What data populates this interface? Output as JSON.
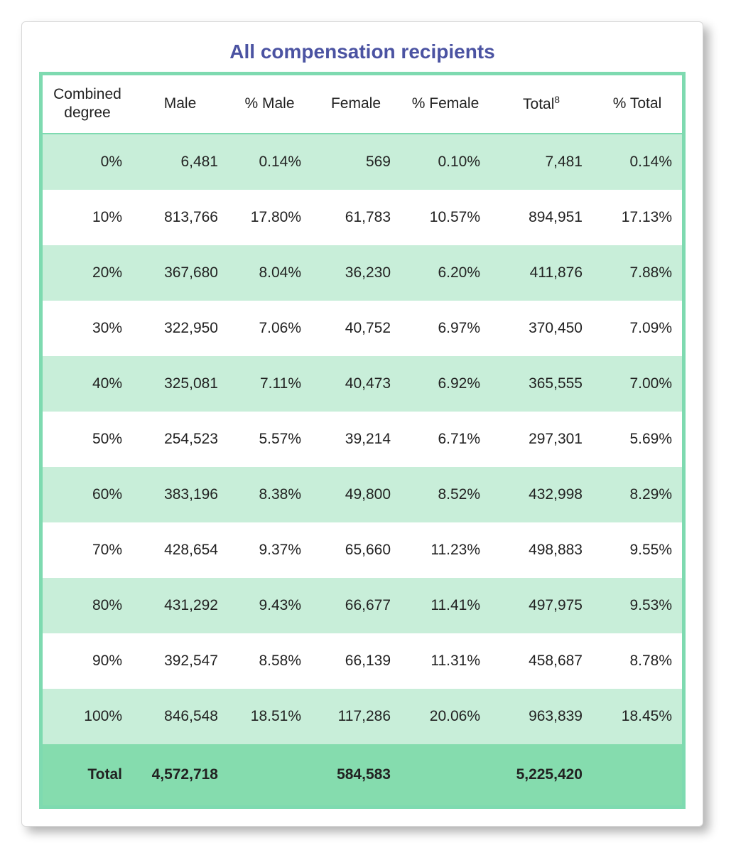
{
  "title": "All compensation recipients",
  "colors": {
    "title": "#4b53a2",
    "table_border": "#7edab0",
    "row_odd_bg": "#c8eed9",
    "row_even_bg": "#ffffff",
    "total_row_bg": "#85dcae",
    "text": "#222222",
    "card_bg": "#ffffff",
    "card_border": "#d8d8d8"
  },
  "typography": {
    "title_fontsize_pt": 21,
    "header_fontsize_pt": 16,
    "cell_fontsize_pt": 16,
    "font_family": "Arial"
  },
  "table": {
    "type": "table",
    "columns": [
      {
        "key": "combined",
        "label_line1": "Combined",
        "label_line2": "degree",
        "align": "right",
        "width_pct": 14
      },
      {
        "key": "male",
        "label": "Male",
        "align": "right",
        "width_pct": 15
      },
      {
        "key": "pmale",
        "label": "% Male",
        "align": "right",
        "width_pct": 13
      },
      {
        "key": "female",
        "label": "Female",
        "align": "right",
        "width_pct": 14
      },
      {
        "key": "pfemale",
        "label": "% Female",
        "align": "right",
        "width_pct": 14
      },
      {
        "key": "total",
        "label": "Total",
        "sup": "8",
        "align": "right",
        "width_pct": 16
      },
      {
        "key": "ptotal",
        "label": "% Total",
        "align": "right",
        "width_pct": 14
      }
    ],
    "rows": [
      {
        "combined": "0%",
        "male": "6,481",
        "pmale": "0.14%",
        "female": "569",
        "pfemale": "0.10%",
        "total": "7,481",
        "ptotal": "0.14%"
      },
      {
        "combined": "10%",
        "male": "813,766",
        "pmale": "17.80%",
        "female": "61,783",
        "pfemale": "10.57%",
        "total": "894,951",
        "ptotal": "17.13%"
      },
      {
        "combined": "20%",
        "male": "367,680",
        "pmale": "8.04%",
        "female": "36,230",
        "pfemale": "6.20%",
        "total": "411,876",
        "ptotal": "7.88%"
      },
      {
        "combined": "30%",
        "male": "322,950",
        "pmale": "7.06%",
        "female": "40,752",
        "pfemale": "6.97%",
        "total": "370,450",
        "ptotal": "7.09%"
      },
      {
        "combined": "40%",
        "male": "325,081",
        "pmale": "7.11%",
        "female": "40,473",
        "pfemale": "6.92%",
        "total": "365,555",
        "ptotal": "7.00%"
      },
      {
        "combined": "50%",
        "male": "254,523",
        "pmale": "5.57%",
        "female": "39,214",
        "pfemale": "6.71%",
        "total": "297,301",
        "ptotal": "5.69%"
      },
      {
        "combined": "60%",
        "male": "383,196",
        "pmale": "8.38%",
        "female": "49,800",
        "pfemale": "8.52%",
        "total": "432,998",
        "ptotal": "8.29%"
      },
      {
        "combined": "70%",
        "male": "428,654",
        "pmale": "9.37%",
        "female": "65,660",
        "pfemale": "11.23%",
        "total": "498,883",
        "ptotal": "9.55%"
      },
      {
        "combined": "80%",
        "male": "431,292",
        "pmale": "9.43%",
        "female": "66,677",
        "pfemale": "11.41%",
        "total": "497,975",
        "ptotal": "9.53%"
      },
      {
        "combined": "90%",
        "male": "392,547",
        "pmale": "8.58%",
        "female": "66,139",
        "pfemale": "11.31%",
        "total": "458,687",
        "ptotal": "8.78%"
      },
      {
        "combined": "100%",
        "male": "846,548",
        "pmale": "18.51%",
        "female": "117,286",
        "pfemale": "20.06%",
        "total": "963,839",
        "ptotal": "18.45%"
      }
    ],
    "total_row": {
      "label": "Total",
      "male": "4,572,718",
      "pmale": "",
      "female": "584,583",
      "pfemale": "",
      "total": "5,225,420",
      "ptotal": ""
    }
  }
}
